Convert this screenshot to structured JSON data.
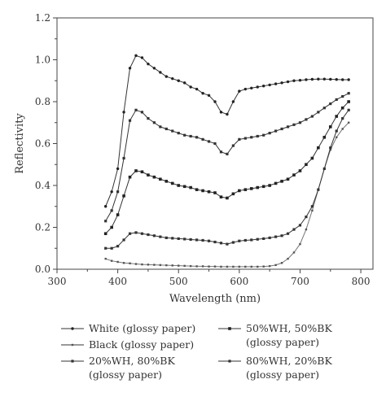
{
  "chart_data": {
    "type": "line",
    "xlabel": "Wavelength (nm)",
    "ylabel": "Reflectivity",
    "xlim": [
      300,
      820
    ],
    "ylim": [
      0,
      1.2
    ],
    "xticks": [
      300,
      400,
      500,
      600,
      700,
      800
    ],
    "yticks": [
      0.0,
      0.2,
      0.4,
      0.6,
      0.8,
      1.0,
      1.2
    ],
    "grid": false,
    "legend_position": "bottom",
    "x": [
      380,
      390,
      400,
      410,
      420,
      430,
      440,
      450,
      460,
      470,
      480,
      490,
      500,
      510,
      520,
      530,
      540,
      550,
      560,
      570,
      580,
      590,
      600,
      610,
      620,
      630,
      640,
      650,
      660,
      670,
      680,
      690,
      700,
      710,
      720,
      730,
      740,
      750,
      760,
      770,
      780
    ],
    "series": [
      {
        "name": "White (glossy paper)",
        "line_lines": [
          "White (glossy paper)"
        ],
        "marker": "dot",
        "values": [
          0.3,
          0.37,
          0.48,
          0.75,
          0.96,
          1.02,
          1.01,
          0.98,
          0.96,
          0.94,
          0.92,
          0.91,
          0.9,
          0.89,
          0.87,
          0.86,
          0.84,
          0.83,
          0.8,
          0.75,
          0.74,
          0.8,
          0.85,
          0.86,
          0.865,
          0.87,
          0.875,
          0.88,
          0.885,
          0.89,
          0.895,
          0.9,
          0.902,
          0.905,
          0.907,
          0.908,
          0.908,
          0.907,
          0.906,
          0.905,
          0.905
        ]
      },
      {
        "name": "Black (glossy paper)",
        "line_lines": [
          "Black (glossy paper)"
        ],
        "marker": "small-square",
        "values": [
          0.05,
          0.04,
          0.035,
          0.03,
          0.028,
          0.025,
          0.023,
          0.022,
          0.021,
          0.02,
          0.019,
          0.018,
          0.017,
          0.016,
          0.015,
          0.014,
          0.014,
          0.013,
          0.013,
          0.012,
          0.012,
          0.012,
          0.012,
          0.012,
          0.012,
          0.012,
          0.013,
          0.015,
          0.02,
          0.03,
          0.05,
          0.08,
          0.12,
          0.19,
          0.28,
          0.38,
          0.48,
          0.57,
          0.63,
          0.67,
          0.7
        ]
      },
      {
        "name": "20%WH, 80%BK (glossy paper)",
        "line_lines": [
          "20%WH, 80%BK",
          "(glossy paper)"
        ],
        "marker": "square",
        "values": [
          0.1,
          0.1,
          0.11,
          0.14,
          0.17,
          0.175,
          0.17,
          0.165,
          0.16,
          0.155,
          0.15,
          0.148,
          0.146,
          0.144,
          0.142,
          0.14,
          0.138,
          0.135,
          0.13,
          0.125,
          0.12,
          0.128,
          0.135,
          0.138,
          0.14,
          0.143,
          0.146,
          0.15,
          0.155,
          0.16,
          0.17,
          0.19,
          0.21,
          0.25,
          0.3,
          0.38,
          0.48,
          0.58,
          0.66,
          0.72,
          0.76
        ]
      },
      {
        "name": "50%WH, 50%BK (glossy paper)",
        "line_lines": [
          "50%WH, 50%BK",
          "(glossy paper)"
        ],
        "marker": "filled-square",
        "values": [
          0.17,
          0.2,
          0.26,
          0.35,
          0.44,
          0.47,
          0.465,
          0.45,
          0.44,
          0.43,
          0.42,
          0.41,
          0.4,
          0.395,
          0.39,
          0.38,
          0.375,
          0.37,
          0.365,
          0.345,
          0.34,
          0.36,
          0.375,
          0.38,
          0.385,
          0.39,
          0.395,
          0.4,
          0.41,
          0.42,
          0.43,
          0.45,
          0.47,
          0.5,
          0.53,
          0.58,
          0.63,
          0.68,
          0.73,
          0.77,
          0.8
        ]
      },
      {
        "name": "80%WH, 20%BK (glossy paper)",
        "line_lines": [
          "80%WH, 20%BK",
          "(glossy paper)"
        ],
        "marker": "square",
        "values": [
          0.23,
          0.28,
          0.37,
          0.53,
          0.71,
          0.76,
          0.75,
          0.72,
          0.7,
          0.68,
          0.67,
          0.66,
          0.65,
          0.64,
          0.635,
          0.63,
          0.62,
          0.61,
          0.6,
          0.56,
          0.55,
          0.59,
          0.62,
          0.625,
          0.63,
          0.635,
          0.64,
          0.65,
          0.66,
          0.67,
          0.68,
          0.69,
          0.7,
          0.715,
          0.73,
          0.75,
          0.77,
          0.79,
          0.81,
          0.825,
          0.84
        ]
      }
    ]
  }
}
